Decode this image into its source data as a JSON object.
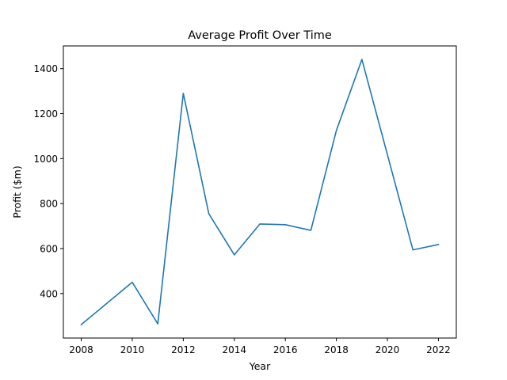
{
  "chart_data": {
    "type": "line",
    "title": "Average Profit Over Time",
    "xlabel": "Year",
    "ylabel": "Profit ($m)",
    "x": [
      2008,
      2010,
      2011,
      2012,
      2013,
      2014,
      2015,
      2016,
      2017,
      2018,
      2019,
      2021,
      2022
    ],
    "series": [
      {
        "values": [
          262,
          450,
          265,
          1290,
          755,
          572,
          709,
          706,
          681,
          1125,
          1441,
          594,
          618
        ],
        "color": "#1f77b4"
      }
    ],
    "xlim": [
      2007.3,
      2022.7
    ],
    "ylim": [
      202,
      1501
    ],
    "xticks": [
      2008,
      2010,
      2012,
      2014,
      2016,
      2018,
      2020,
      2022
    ],
    "xtick_labels": [
      "2008",
      "2010",
      "2012",
      "2014",
      "2016",
      "2018",
      "2020",
      "2022"
    ],
    "yticks": [
      400,
      600,
      800,
      1000,
      1200,
      1400
    ],
    "ytick_labels": [
      "400",
      "600",
      "800",
      "1000",
      "1200",
      "1400"
    ],
    "grid": false,
    "legend": "none"
  }
}
